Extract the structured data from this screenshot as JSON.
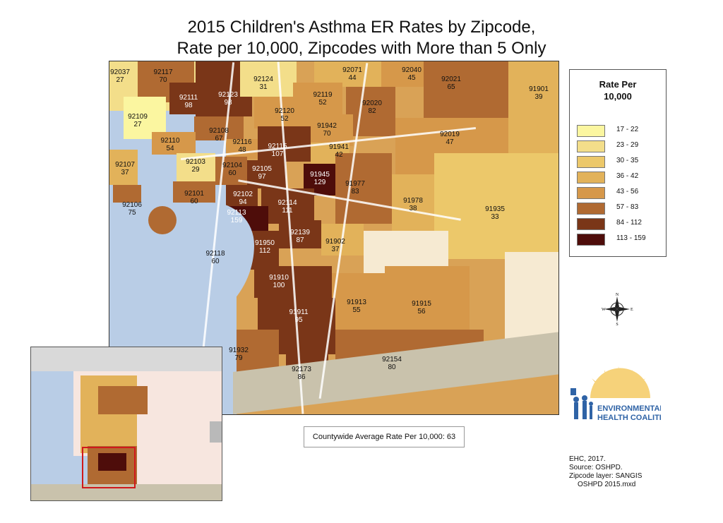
{
  "title": {
    "line1": "2015 Children's Asthma ER Rates by Zipcode,",
    "line2": "Rate per 10,000, Zipcodes with More than 5 Only"
  },
  "legend": {
    "title_line1": "Rate Per",
    "title_line2": "10,000",
    "classes": [
      {
        "range": "17 - 22",
        "color": "#fbf6a0"
      },
      {
        "range": "23 - 29",
        "color": "#f3de8a"
      },
      {
        "range": "30 - 35",
        "color": "#ecc86a"
      },
      {
        "range": "36 - 42",
        "color": "#e2b25a"
      },
      {
        "range": "43 - 56",
        "color": "#d6984a"
      },
      {
        "range": "57 - 83",
        "color": "#b06a32"
      },
      {
        "range": "84 - 112",
        "color": "#7a3618"
      },
      {
        "range": "113 - 159",
        "color": "#4e0d0a"
      }
    ]
  },
  "zipcodes": [
    {
      "zip": "92037",
      "rate": "27"
    },
    {
      "zip": "92117",
      "rate": "70"
    },
    {
      "zip": "92111",
      "rate": "98"
    },
    {
      "zip": "92123",
      "rate": "98"
    },
    {
      "zip": "92124",
      "rate": "31"
    },
    {
      "zip": "92071",
      "rate": "44"
    },
    {
      "zip": "92040",
      "rate": "45"
    },
    {
      "zip": "92021",
      "rate": "65"
    },
    {
      "zip": "91901",
      "rate": "39"
    },
    {
      "zip": "92119",
      "rate": "52"
    },
    {
      "zip": "92020",
      "rate": "82"
    },
    {
      "zip": "92120",
      "rate": "52"
    },
    {
      "zip": "92109",
      "rate": "27"
    },
    {
      "zip": "92108",
      "rate": "67"
    },
    {
      "zip": "91942",
      "rate": "70"
    },
    {
      "zip": "92019",
      "rate": "47"
    },
    {
      "zip": "92110",
      "rate": "54"
    },
    {
      "zip": "92116",
      "rate": "48"
    },
    {
      "zip": "92115",
      "rate": "107"
    },
    {
      "zip": "91941",
      "rate": "42"
    },
    {
      "zip": "92107",
      "rate": "37"
    },
    {
      "zip": "92103",
      "rate": "29"
    },
    {
      "zip": "92104",
      "rate": "60"
    },
    {
      "zip": "92105",
      "rate": "97"
    },
    {
      "zip": "91945",
      "rate": "129"
    },
    {
      "zip": "91977",
      "rate": "83"
    },
    {
      "zip": "92101",
      "rate": "60"
    },
    {
      "zip": "92102",
      "rate": "94"
    },
    {
      "zip": "92114",
      "rate": "111"
    },
    {
      "zip": "91978",
      "rate": "38"
    },
    {
      "zip": "91935",
      "rate": "33"
    },
    {
      "zip": "92106",
      "rate": "75"
    },
    {
      "zip": "92113",
      "rate": "159"
    },
    {
      "zip": "92139",
      "rate": "87"
    },
    {
      "zip": "91902",
      "rate": "37"
    },
    {
      "zip": "91950",
      "rate": "112"
    },
    {
      "zip": "92118",
      "rate": "60"
    },
    {
      "zip": "91910",
      "rate": "100"
    },
    {
      "zip": "91913",
      "rate": "55"
    },
    {
      "zip": "91915",
      "rate": "56"
    },
    {
      "zip": "91911",
      "rate": "95"
    },
    {
      "zip": "91932",
      "rate": "79"
    },
    {
      "zip": "92154",
      "rate": "80"
    },
    {
      "zip": "92173",
      "rate": "86"
    }
  ],
  "compass": {
    "n": "N",
    "s": "S",
    "e": "E",
    "w": "W"
  },
  "county_average": "Countywide Average Rate Per 10,000: 63",
  "logo": {
    "line1": "ENVIRONMENTAL",
    "line2": "HEALTH COALITION"
  },
  "credits": {
    "line1": "EHC, 2017.",
    "line2": "Source: OSHPD.",
    "line3": "Zipcode layer: SANGIS",
    "line4": "OSHPD 2015.mxd"
  },
  "colors": {
    "ocean": "#b9cde6",
    "mexico": "#c9c2ac",
    "no_data": "#f6ead2",
    "inset_land": "#f7e6df",
    "inset_box": "#d0191b",
    "logo_blue": "#2f63a6",
    "logo_gold": "#f2b733"
  }
}
